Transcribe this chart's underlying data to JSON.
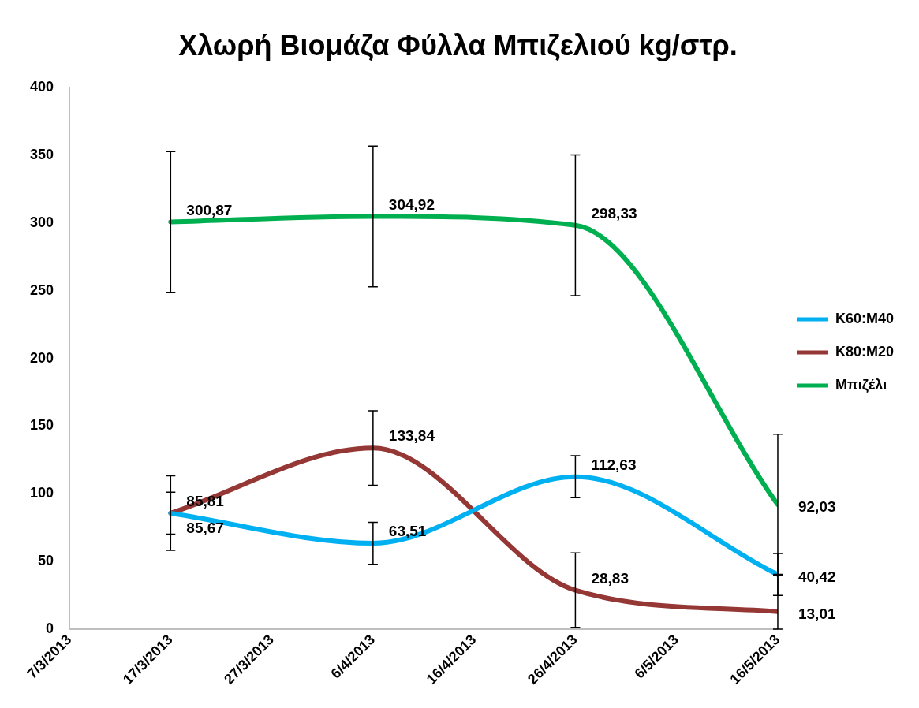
{
  "chart_data": {
    "type": "line",
    "title": "Χλωρή Βιομάζα Φύλλα Μπιζελιού kg/στρ.",
    "x": [
      "2013-03-17",
      "2013-04-06",
      "2013-04-26",
      "2013-05-16"
    ],
    "series": [
      {
        "name": "Κ60:Μ40",
        "color": "#00b0f0",
        "values": [
          85.67,
          63.51,
          112.63,
          40.42
        ],
        "errors": [
          15.5,
          15.5,
          15.5,
          15.5
        ],
        "value_labels": [
          "85,67",
          "63,51",
          "112,63",
          "40,42"
        ]
      },
      {
        "name": "Κ80:Μ20",
        "color": "#953735",
        "values": [
          85.81,
          133.84,
          28.83,
          13.01
        ],
        "errors": [
          27.5,
          27.5,
          27.5,
          [
            0,
            40.5
          ]
        ],
        "value_labels": [
          "85,81",
          "133,84",
          "28,83",
          "13,01"
        ]
      },
      {
        "name": "Μπιζέλι",
        "color": "#00b050",
        "values": [
          300.87,
          304.92,
          298.33,
          92.03
        ],
        "errors": [
          52,
          52,
          52,
          52
        ],
        "value_labels": [
          "300,87",
          "304,92",
          "298,33",
          "92,03"
        ]
      }
    ],
    "xlim": [
      "2013-03-07",
      "2013-05-16"
    ],
    "xticks": [
      {
        "value": "2013-03-07",
        "label": "7/3/2013"
      },
      {
        "value": "2013-03-17",
        "label": "17/3/2013"
      },
      {
        "value": "2013-03-27",
        "label": "27/3/2013"
      },
      {
        "value": "2013-04-06",
        "label": "6/4/2013"
      },
      {
        "value": "2013-04-16",
        "label": "16/4/2013"
      },
      {
        "value": "2013-04-26",
        "label": "26/4/2013"
      },
      {
        "value": "2013-05-06",
        "label": "6/5/2013"
      },
      {
        "value": "2013-05-16",
        "label": "16/5/2013"
      }
    ],
    "ylim": [
      0,
      400
    ],
    "yticks": [
      0,
      50,
      100,
      150,
      200,
      250,
      300,
      350,
      400
    ],
    "grid": false,
    "legend": "right",
    "marker": "none",
    "line_style": "solid"
  }
}
